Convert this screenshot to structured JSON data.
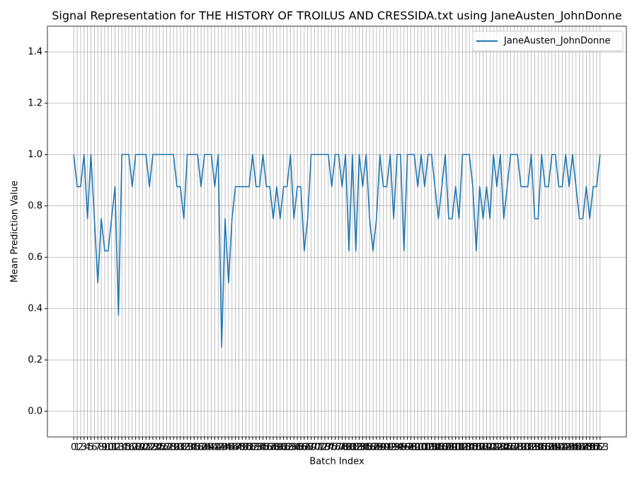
{
  "chart_data": {
    "type": "line",
    "title": "Signal Representation for THE HISTORY OF TROILUS AND CRESSIDA.txt using JaneAusten_JohnDonne",
    "xlabel": "Batch Index",
    "ylabel": "Mean Prediction Value",
    "x": [
      0,
      1,
      2,
      3,
      4,
      5,
      6,
      7,
      8,
      9,
      10,
      11,
      12,
      13,
      14,
      15,
      16,
      17,
      18,
      19,
      20,
      21,
      22,
      23,
      24,
      25,
      26,
      27,
      28,
      29,
      30,
      31,
      32,
      33,
      34,
      35,
      36,
      37,
      38,
      39,
      40,
      41,
      42,
      43,
      44,
      45,
      46,
      47,
      48,
      49,
      50,
      51,
      52,
      53,
      54,
      55,
      56,
      57,
      58,
      59,
      60,
      61,
      62,
      63,
      64,
      65,
      66,
      67,
      68,
      69,
      70,
      71,
      72,
      73,
      74,
      75,
      76,
      77,
      78,
      79,
      80,
      81,
      82,
      83,
      84,
      85,
      86,
      87,
      88,
      89,
      90,
      91,
      92,
      93,
      94,
      95,
      96,
      97,
      98,
      99,
      100,
      101,
      102,
      103,
      104,
      105,
      106,
      107,
      108,
      109,
      110,
      111,
      112,
      113,
      114,
      115,
      116,
      117,
      118,
      119,
      120,
      121,
      122,
      123,
      124,
      125,
      126,
      127,
      128,
      129,
      130,
      131,
      132,
      133,
      134,
      135,
      136,
      137,
      138,
      139,
      140,
      141,
      142,
      143,
      144,
      145,
      146,
      147,
      148,
      149,
      150,
      151,
      152,
      153
    ],
    "series": [
      {
        "name": "JaneAusten_JohnDonne",
        "color": "#1f77b4",
        "values": [
          1,
          0.875,
          0.875,
          1,
          0.75,
          1,
          0.75,
          0.5,
          0.75,
          0.625,
          0.625,
          0.75,
          0.875,
          0.375,
          1,
          1,
          1,
          0.875,
          1,
          1,
          1,
          1,
          0.875,
          1,
          1,
          1,
          1,
          1,
          1,
          1,
          0.875,
          0.875,
          0.75,
          1,
          1,
          1,
          1,
          0.875,
          1,
          1,
          1,
          0.875,
          1,
          0.25,
          0.75,
          0.5,
          0.75,
          0.875,
          0.875,
          0.875,
          0.875,
          0.875,
          1,
          0.875,
          0.875,
          1,
          0.875,
          0.875,
          0.75,
          0.875,
          0.75,
          0.875,
          0.875,
          1,
          0.75,
          0.875,
          0.875,
          0.625,
          0.75,
          1,
          1,
          1,
          1,
          1,
          1,
          0.875,
          1,
          1,
          0.875,
          1,
          0.625,
          1,
          0.625,
          1,
          0.875,
          1,
          0.75,
          0.625,
          0.75,
          1,
          0.875,
          0.875,
          1,
          0.75,
          1,
          1,
          0.625,
          1,
          1,
          1,
          0.875,
          1,
          0.875,
          1,
          1,
          0.875,
          0.75,
          0.875,
          1,
          0.75,
          0.75,
          0.875,
          0.75,
          1,
          1,
          1,
          0.875,
          0.625,
          0.875,
          0.75,
          0.875,
          0.75,
          1,
          0.875,
          1,
          0.75,
          0.875,
          1,
          1,
          1,
          0.875,
          0.875,
          0.875,
          1,
          0.75,
          0.75,
          1,
          0.875,
          0.875,
          1,
          1,
          0.875,
          0.875,
          1,
          0.875,
          1,
          0.875,
          0.75,
          0.75,
          0.875,
          0.75,
          0.875,
          0.875,
          1
        ]
      }
    ],
    "xlim": [
      -7.65,
      160.65
    ],
    "xticks": [
      0,
      1,
      2,
      3,
      4,
      5,
      6,
      7,
      8,
      9,
      10,
      11,
      12,
      13,
      14,
      15,
      16,
      17,
      18,
      19,
      20,
      21,
      22,
      23,
      24,
      25,
      26,
      27,
      28,
      29,
      30,
      31,
      32,
      33,
      34,
      35,
      36,
      37,
      38,
      39,
      40,
      41,
      42,
      43,
      44,
      45,
      46,
      47,
      48,
      49,
      50,
      51,
      52,
      53,
      54,
      55,
      56,
      57,
      58,
      59,
      60,
      61,
      62,
      63,
      64,
      65,
      66,
      67,
      68,
      69,
      70,
      71,
      72,
      73,
      74,
      75,
      76,
      77,
      78,
      79,
      80,
      81,
      82,
      83,
      84,
      85,
      86,
      87,
      88,
      89,
      90,
      91,
      92,
      93,
      94,
      95,
      96,
      97,
      98,
      99,
      100,
      101,
      102,
      103,
      104,
      105,
      106,
      107,
      108,
      109,
      110,
      111,
      112,
      113,
      114,
      115,
      116,
      117,
      118,
      119,
      120,
      121,
      122,
      123,
      124,
      125,
      126,
      127,
      128,
      129,
      130,
      131,
      132,
      133,
      134,
      135,
      136,
      137,
      138,
      139,
      140,
      141,
      142,
      143,
      144,
      145,
      146,
      147,
      148,
      149,
      150,
      151,
      152,
      153
    ],
    "ylim": [
      -0.1,
      1.5
    ],
    "yticks": [
      {
        "value": 0,
        "label": "0.0"
      },
      0.2,
      0.4,
      0.6,
      0.8,
      {
        "value": 1,
        "label": "1.0"
      },
      1.2,
      1.4
    ],
    "grid": true,
    "legend": "upper right"
  }
}
